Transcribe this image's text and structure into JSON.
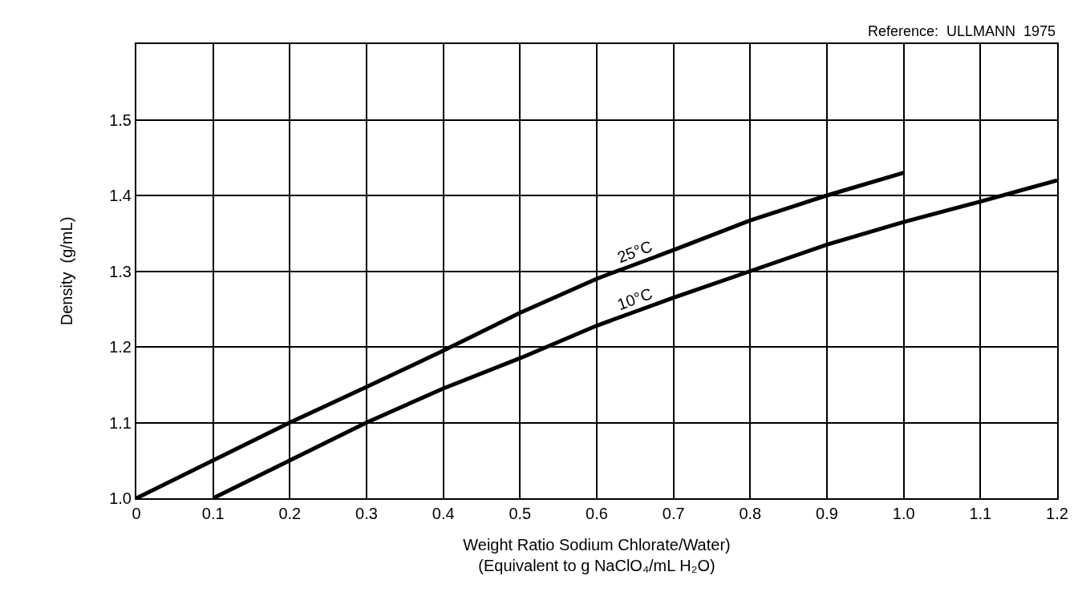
{
  "chart_data": {
    "type": "line",
    "xlabel": "Weight Ratio Sodium Chlorate/Water)\n(Equivalent to g NaClO₄/mL H₂O)",
    "ylabel": "Density  (g/mL)",
    "annotations": [
      "Reference:  ULLMANN  1975"
    ],
    "series": [
      {
        "name": "25°C",
        "color": "#000000",
        "x": [
          0,
          0.1,
          0.2,
          0.3,
          0.4,
          0.5,
          0.6,
          0.7,
          0.8,
          0.9,
          1.0
        ],
        "values": [
          1.0,
          1.05,
          1.1,
          1.147,
          1.195,
          1.245,
          1.29,
          1.328,
          1.367,
          1.4,
          1.43
        ]
      },
      {
        "name": "10°C",
        "color": "#000000",
        "x": [
          0.1,
          0.2,
          0.3,
          0.4,
          0.5,
          0.6,
          0.7,
          0.8,
          0.9,
          1.0,
          1.1,
          1.2
        ],
        "values": [
          1.0,
          1.05,
          1.1,
          1.145,
          1.185,
          1.228,
          1.265,
          1.3,
          1.335,
          1.365,
          1.392,
          1.42
        ]
      }
    ],
    "xlim": [
      0,
      1.2
    ],
    "xticks": [
      0,
      0.1,
      0.2,
      0.3,
      0.4,
      0.5,
      0.6,
      0.7,
      0.8,
      0.9,
      {
        "value": 1.0,
        "label": "1.0"
      },
      1.1,
      1.2
    ],
    "ylim": [
      1.0,
      1.6
    ],
    "yticks": [
      {
        "value": 1.0,
        "label": "1.0"
      },
      1.1,
      1.2,
      1.3,
      1.4,
      1.5,
      {
        "value": 1.6,
        "label": null
      }
    ],
    "grid": true,
    "legend": false,
    "line_style": "solid",
    "marker": "none"
  }
}
